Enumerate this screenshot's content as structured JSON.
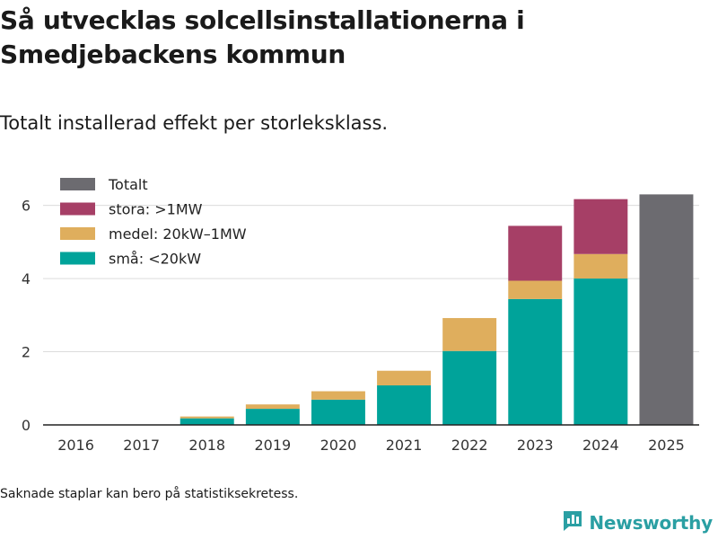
{
  "title": "Så utvecklas solcellsinstallationerna i Smedjebackens kommun",
  "subtitle": "Totalt installerad effekt per storleksklass.",
  "footnote": "Saknade staplar kan bero på statistiksekretess.",
  "brand": "Newsworthy",
  "chart_data": {
    "type": "bar",
    "stacked": true,
    "categories": [
      "2016",
      "2017",
      "2018",
      "2019",
      "2020",
      "2021",
      "2022",
      "2023",
      "2024",
      "2025"
    ],
    "series": [
      {
        "name": "små: <20kW",
        "color": "#00a39a",
        "values": [
          0,
          0,
          0.18,
          0.44,
          0.69,
          1.08,
          2.02,
          3.44,
          4.0,
          null
        ]
      },
      {
        "name": "medel: 20kW–1MW",
        "color": "#dfae5d",
        "values": [
          0,
          0,
          0.05,
          0.12,
          0.23,
          0.4,
          0.9,
          0.5,
          0.67,
          null
        ]
      },
      {
        "name": "stora: >1MW",
        "color": "#a63f66",
        "values": [
          0,
          0,
          0,
          0,
          0,
          0,
          0,
          1.5,
          1.5,
          null
        ]
      },
      {
        "name": "Totalt",
        "color": "#6c6b70",
        "values": [
          null,
          null,
          null,
          null,
          null,
          null,
          null,
          null,
          null,
          6.3
        ]
      }
    ],
    "legend": [
      "Totalt",
      "stora: >1MW",
      "medel: 20kW–1MW",
      "små: <20kW"
    ],
    "yticks": [
      0,
      2,
      4,
      6
    ],
    "ylim": [
      0,
      6.9
    ],
    "xlabel": "",
    "ylabel": "",
    "grid": true,
    "legend_position": "top-left"
  }
}
